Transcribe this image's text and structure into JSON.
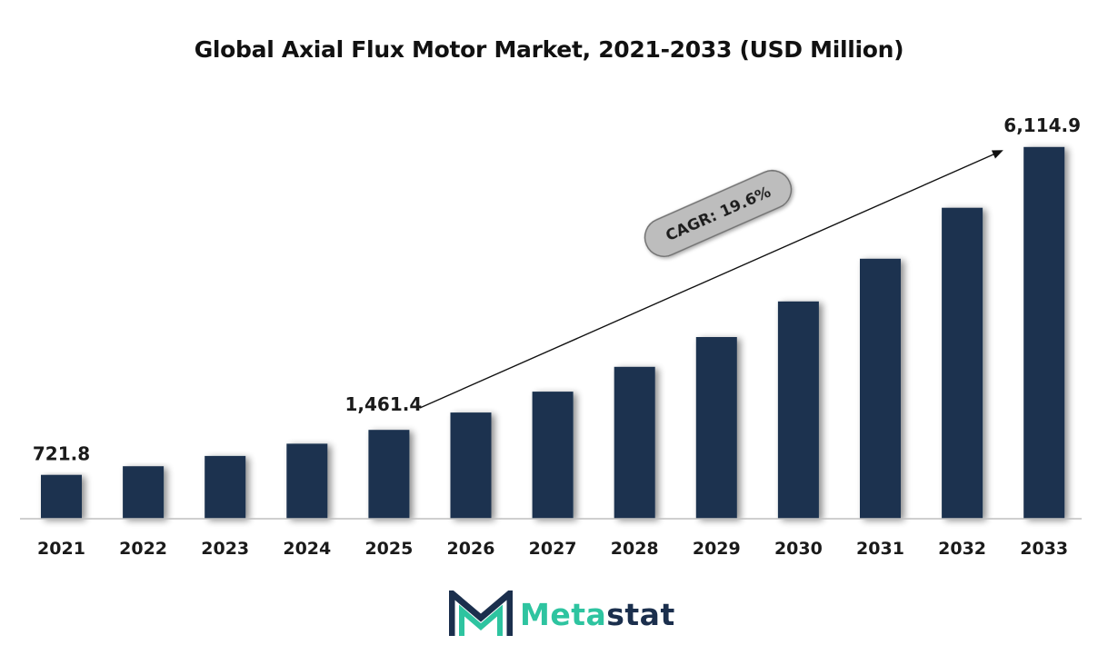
{
  "title": "Global Axial Flux Motor Market, 2021-2033 (USD Million)",
  "colors": {
    "bar": "#1b3350",
    "axis": "#bfbfbf",
    "cagr_badge_fill": "#bdbdbd",
    "cagr_badge_stroke": "#6f6f6f",
    "logo_teal": "#2ec4a0",
    "logo_navy": "#1b2f4d"
  },
  "chart_data": {
    "type": "bar",
    "title": "Global Axial Flux Motor Market, 2021-2033 (USD Million)",
    "xlabel": "",
    "ylabel": "",
    "categories": [
      "2021",
      "2022",
      "2023",
      "2024",
      "2025",
      "2026",
      "2027",
      "2028",
      "2029",
      "2030",
      "2031",
      "2032",
      "2033"
    ],
    "values": [
      721.8,
      863.0,
      1032.0,
      1234.0,
      1461.4,
      1747.0,
      2090.0,
      2499.0,
      2989.0,
      3575.0,
      4277.0,
      5115.0,
      6114.9
    ],
    "data_labels": {
      "2021": "721.8",
      "2025": "1,461.4",
      "2033": "6,114.9"
    },
    "annotation": "CAGR: 19.6%",
    "ylim": [
      0,
      6500
    ],
    "grid": false,
    "legend": "none"
  },
  "logo": {
    "icon": "metastat-m-icon",
    "text_part_1": "Meta",
    "text_part_2": "stat"
  }
}
